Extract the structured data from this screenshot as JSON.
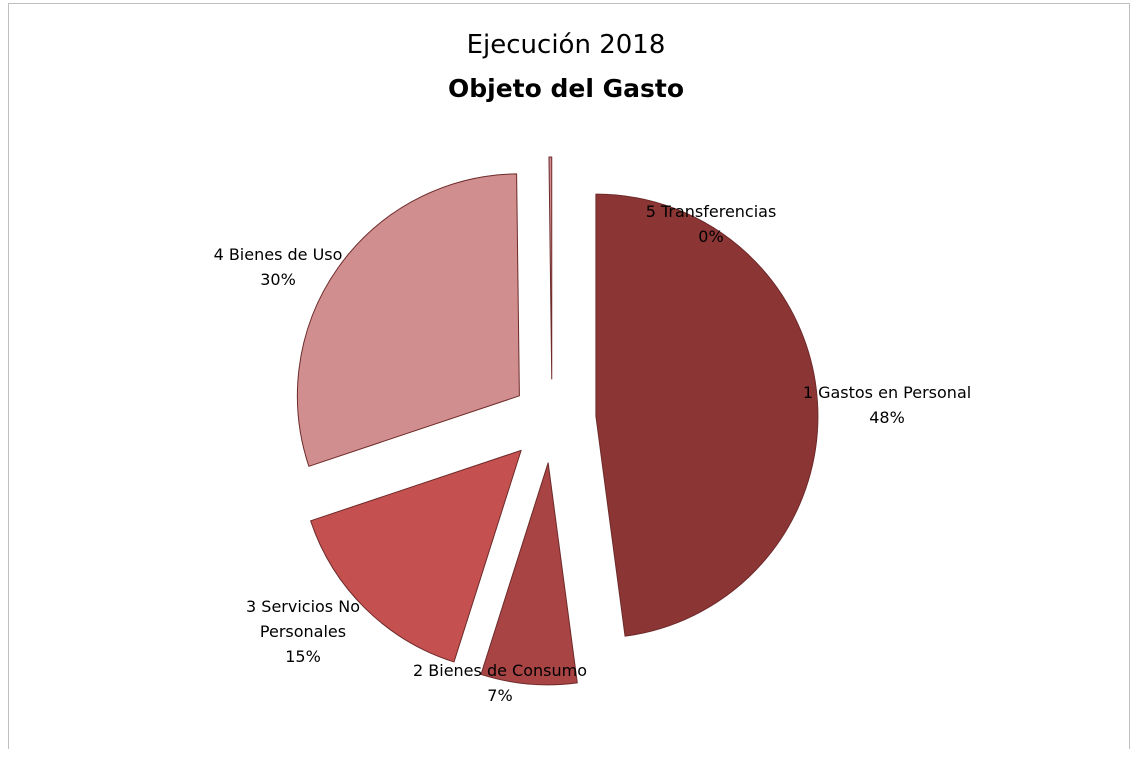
{
  "chart_data": {
    "type": "pie",
    "title": "Ejecución 2018",
    "subtitle": "Objeto del Gasto",
    "legend": "none",
    "slices": [
      {
        "label": "1 Gastos en Personal",
        "value": 48,
        "value_label": "48%",
        "color": "#8b3535"
      },
      {
        "label": "2 Bienes de Consumo",
        "value": 7,
        "value_label": "7%",
        "color": "#a84444"
      },
      {
        "label": "3 Servicios No Personales",
        "value": 15,
        "value_label": "15%",
        "color": "#c45050"
      },
      {
        "label": "4 Bienes de Uso",
        "value": 30,
        "value_label": "30%",
        "color": "#d08e8e"
      },
      {
        "label": "5 Transferencias",
        "value": 0.2,
        "value_label": "0%",
        "color": "#d08e8e"
      }
    ]
  }
}
